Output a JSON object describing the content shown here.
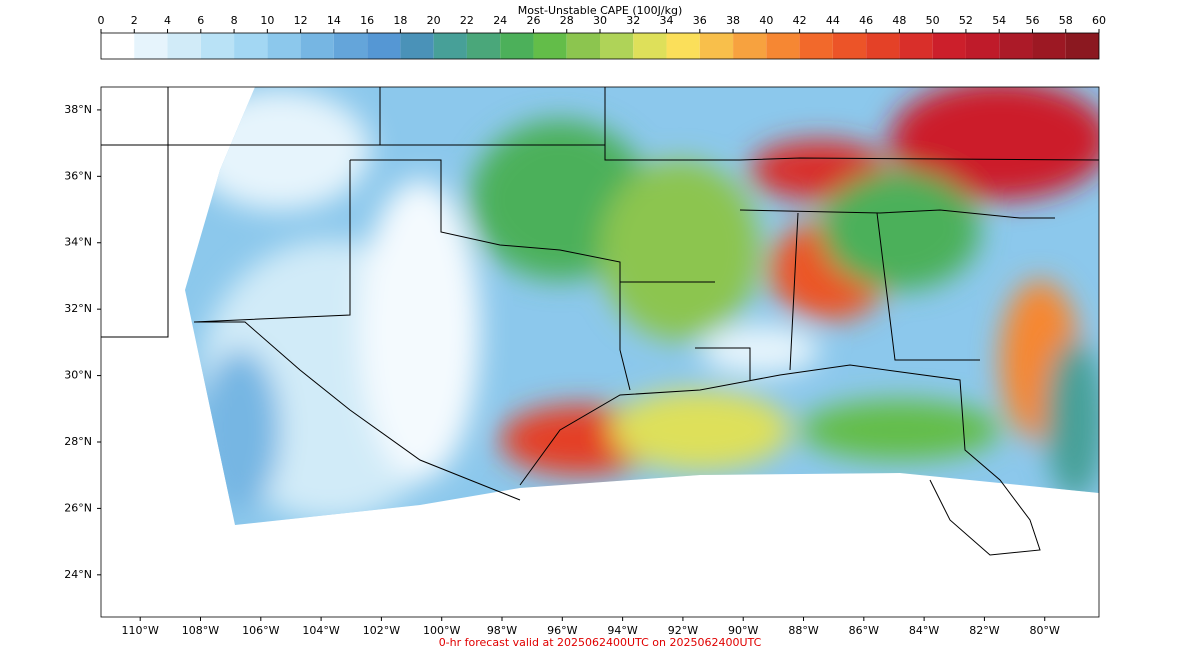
{
  "colorbar": {
    "title": "Most-Unstable CAPE (100J/kg)",
    "ticks": [
      0,
      2,
      4,
      6,
      8,
      10,
      12,
      14,
      16,
      18,
      20,
      22,
      24,
      26,
      28,
      30,
      32,
      34,
      36,
      38,
      40,
      42,
      44,
      46,
      48,
      50,
      52,
      54,
      56,
      58,
      60
    ],
    "colors": [
      "#ffffff",
      "#e6f4fc",
      "#d1ebf8",
      "#b9e2f6",
      "#a3d7f3",
      "#8cc8ec",
      "#76b6e3",
      "#64a5da",
      "#5597d4",
      "#4a92b8",
      "#47a098",
      "#4aa77a",
      "#4cb05a",
      "#63bd49",
      "#8cc54f",
      "#afd358",
      "#dee05a",
      "#fbdf5a",
      "#f8bf4b",
      "#f7a23f",
      "#f68733",
      "#f2692b",
      "#ec5428",
      "#e44127",
      "#d92f2a",
      "#cc1f2b",
      "#bf1b2a",
      "#ac1a28",
      "#9c1823",
      "#8b1820"
    ]
  },
  "map": {
    "xlim": [
      -111.3,
      -78.2
    ],
    "ylim": [
      22.73,
      38.69
    ],
    "xticks": [
      {
        "value": -110,
        "label": "110°W"
      },
      {
        "value": -108,
        "label": "108°W"
      },
      {
        "value": -106,
        "label": "106°W"
      },
      {
        "value": -104,
        "label": "104°W"
      },
      {
        "value": -102,
        "label": "102°W"
      },
      {
        "value": -100,
        "label": "100°W"
      },
      {
        "value": -98,
        "label": "98°W"
      },
      {
        "value": -96,
        "label": "96°W"
      },
      {
        "value": -94,
        "label": "94°W"
      },
      {
        "value": -92,
        "label": "92°W"
      },
      {
        "value": -90,
        "label": "90°W"
      },
      {
        "value": -88,
        "label": "88°W"
      },
      {
        "value": -86,
        "label": "86°W"
      },
      {
        "value": -84,
        "label": "84°W"
      },
      {
        "value": -82,
        "label": "82°W"
      },
      {
        "value": -80,
        "label": "80°W"
      }
    ],
    "yticks": [
      {
        "value": 38,
        "label": "38°N"
      },
      {
        "value": 36,
        "label": "36°N"
      },
      {
        "value": 34,
        "label": "34°N"
      },
      {
        "value": 32,
        "label": "32°N"
      },
      {
        "value": 30,
        "label": "30°N"
      },
      {
        "value": 28,
        "label": "28°N"
      },
      {
        "value": 26,
        "label": "26°N"
      },
      {
        "value": 24,
        "label": "24°N"
      }
    ]
  },
  "footer": "0-hr forecast valid at 2025062400UTC on 2025062400UTC"
}
